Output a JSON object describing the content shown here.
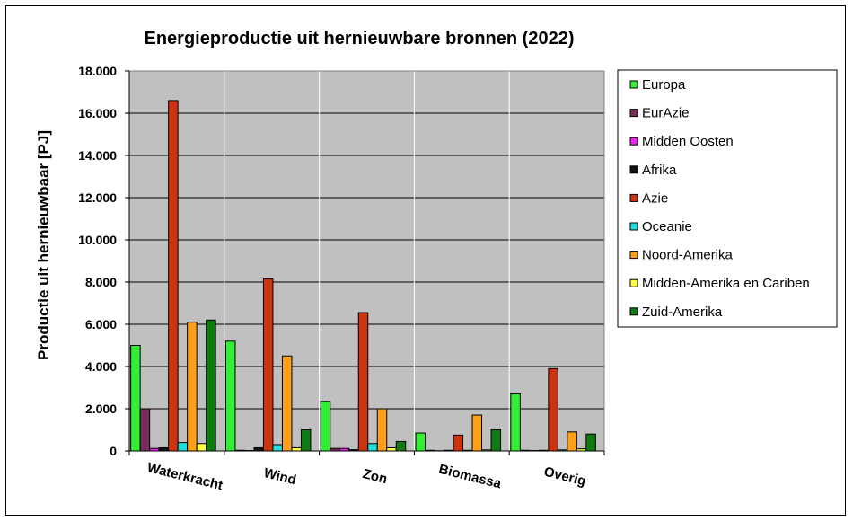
{
  "chart_data": {
    "type": "bar",
    "title": "Energieproductie uit hernieuwbare bronnen (2022)",
    "xlabel": "",
    "ylabel": "Productie uit hernieuwbaar [PJ]",
    "ylim": [
      0,
      18000
    ],
    "yticks": [
      0,
      2000,
      4000,
      6000,
      8000,
      10000,
      12000,
      14000,
      16000,
      18000
    ],
    "ytick_labels": [
      "0",
      "2.000",
      "4.000",
      "6.000",
      "8.000",
      "10.000",
      "12.000",
      "14.000",
      "16.000",
      "18.000"
    ],
    "grid": true,
    "legend_position": "right",
    "categories": [
      "Waterkracht",
      "Wind",
      "Zon",
      "Biomassa",
      "Overig"
    ],
    "series": [
      {
        "name": "Europa",
        "color": "#33ee33",
        "values": [
          5000,
          5200,
          2350,
          850,
          2700
        ]
      },
      {
        "name": "EurAzie",
        "color": "#7b2d5e",
        "values": [
          2000,
          30,
          120,
          30,
          30
        ]
      },
      {
        "name": "Midden Oosten",
        "color": "#ee22ee",
        "values": [
          120,
          20,
          120,
          10,
          20
        ]
      },
      {
        "name": "Afrika",
        "color": "#111111",
        "values": [
          150,
          150,
          60,
          30,
          30
        ]
      },
      {
        "name": "Azie",
        "color": "#cc3311",
        "values": [
          16600,
          8150,
          6550,
          750,
          3900
        ]
      },
      {
        "name": "Oceanie",
        "color": "#22dddd",
        "values": [
          400,
          300,
          350,
          30,
          50
        ]
      },
      {
        "name": "Noord-Amerika",
        "color": "#ff9f1a",
        "values": [
          6100,
          4500,
          2000,
          1700,
          900
        ]
      },
      {
        "name": "Midden-Amerika en Cariben",
        "color": "#ffff44",
        "values": [
          350,
          150,
          150,
          50,
          100
        ]
      },
      {
        "name": "Zuid-Amerika",
        "color": "#117a11",
        "values": [
          6200,
          1000,
          450,
          1000,
          800
        ]
      }
    ]
  }
}
